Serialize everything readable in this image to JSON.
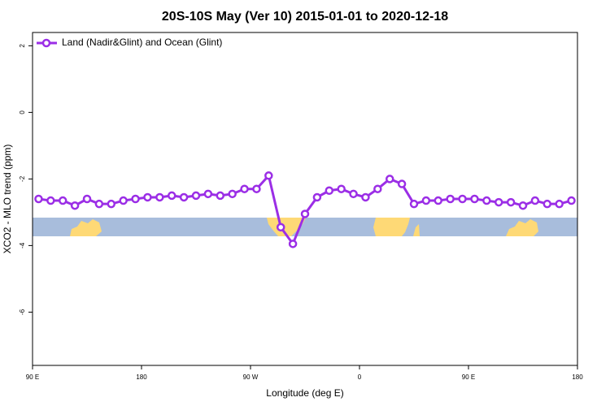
{
  "chart_data": {
    "type": "line",
    "title": "20S-10S May (Ver 10)   2015-01-01 to 2020-12-18",
    "x_label": "Longitude (deg E)",
    "y_label": "XCO2 - MLO trend (ppm)",
    "x": [
      95,
      105,
      115,
      125,
      135,
      145,
      155,
      165,
      175,
      185,
      195,
      205,
      215,
      225,
      235,
      245,
      255,
      265,
      275,
      285,
      295,
      305,
      315,
      325,
      335,
      345,
      355,
      365,
      375,
      385,
      395,
      405,
      415,
      425,
      435,
      445,
      455,
      465,
      475,
      485,
      495,
      505,
      515,
      525,
      535
    ],
    "series": [
      {
        "name": "Land (Nadir&Glint) and Ocean (Glint)",
        "color": "#9b2ee6",
        "values": [
          -2.6,
          -2.65,
          -2.65,
          -2.8,
          -2.6,
          -2.75,
          -2.75,
          -2.65,
          -2.6,
          -2.55,
          -2.55,
          -2.5,
          -2.55,
          -2.5,
          -2.45,
          -2.5,
          -2.45,
          -2.3,
          -2.3,
          -1.9,
          -3.45,
          -3.95,
          -3.05,
          -2.55,
          -2.35,
          -2.3,
          -2.45,
          -2.55,
          -2.3,
          -2.0,
          -2.15,
          -2.75,
          -2.65,
          -2.65,
          -2.6,
          -2.6,
          -2.6,
          -2.65,
          -2.7,
          -2.7,
          -2.8,
          -2.65,
          -2.75,
          -2.75,
          -2.65
        ]
      }
    ],
    "xlim": [
      90,
      540
    ],
    "xticks": [
      {
        "value": 90,
        "label": "90 E"
      },
      180,
      {
        "value": 270,
        "label": "90 W"
      },
      {
        "value": 360,
        "label": "0"
      },
      {
        "value": 450,
        "label": "90 E"
      },
      {
        "value": 540,
        "label": "180"
      }
    ],
    "ylim": [
      -7.6,
      2.4
    ],
    "yticks": [
      2,
      0,
      -2,
      -4,
      -6
    ],
    "legend": "top-left"
  }
}
